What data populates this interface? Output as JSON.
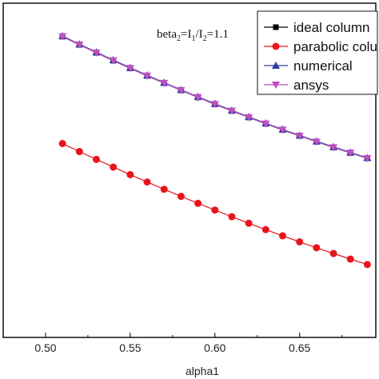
{
  "chart_data": {
    "type": "line",
    "title": "",
    "xlabel": "alpha1",
    "ylabel": "",
    "xlim": [
      0.475,
      0.695
    ],
    "ylim": [
      0.0,
      1.0
    ],
    "x_ticks": [
      "0.50",
      "0.55",
      "0.60",
      "0.65"
    ],
    "x_tick_values": [
      0.5,
      0.55,
      0.6,
      0.65
    ],
    "grid": false,
    "legend_position": "top-right",
    "annotation": {
      "parts": [
        {
          "text": "beta",
          "sub": false
        },
        {
          "text": "2",
          "sub": true
        },
        {
          "text": "=I",
          "sub": false
        },
        {
          "text": "1",
          "sub": true
        },
        {
          "text": "/I",
          "sub": false
        },
        {
          "text": "2",
          "sub": true
        },
        {
          "text": "=1.1",
          "sub": false
        }
      ]
    },
    "x": [
      0.51,
      0.52,
      0.53,
      0.54,
      0.55,
      0.56,
      0.57,
      0.58,
      0.59,
      0.6,
      0.61,
      0.62,
      0.63,
      0.64,
      0.65,
      0.66,
      0.67,
      0.68,
      0.69
    ],
    "series": [
      {
        "name": "ideal column",
        "color": "#000000",
        "marker": "square",
        "values": [
          0.9,
          0.8755,
          0.8516,
          0.8281,
          0.8051,
          0.7826,
          0.7607,
          0.7392,
          0.7182,
          0.6977,
          0.6777,
          0.6583,
          0.6393,
          0.6208,
          0.6029,
          0.5854,
          0.5684,
          0.552,
          0.536
        ]
      },
      {
        "name": "parabolic column",
        "color": "#e8141c",
        "marker": "circle",
        "values": [
          0.58,
          0.5562,
          0.5327,
          0.5097,
          0.4871,
          0.465,
          0.4433,
          0.4221,
          0.4013,
          0.381,
          0.3611,
          0.3416,
          0.3226,
          0.3041,
          0.286,
          0.2683,
          0.2511,
          0.2344,
          0.2181
        ]
      },
      {
        "name": "numerical",
        "color": "#2c3ea8",
        "marker": "triangle-up",
        "values": [
          0.902,
          0.8775,
          0.8535,
          0.83,
          0.807,
          0.7845,
          0.7625,
          0.741,
          0.72,
          0.6995,
          0.6795,
          0.66,
          0.641,
          0.6225,
          0.6045,
          0.587,
          0.57,
          0.5535,
          0.5375
        ]
      },
      {
        "name": "ansys",
        "color": "#c04fc0",
        "marker": "triangle-down",
        "values": [
          0.9005,
          0.876,
          0.852,
          0.8285,
          0.8055,
          0.783,
          0.761,
          0.7395,
          0.7185,
          0.698,
          0.678,
          0.6585,
          0.6395,
          0.621,
          0.603,
          0.5855,
          0.5685,
          0.552,
          0.536
        ]
      }
    ]
  }
}
